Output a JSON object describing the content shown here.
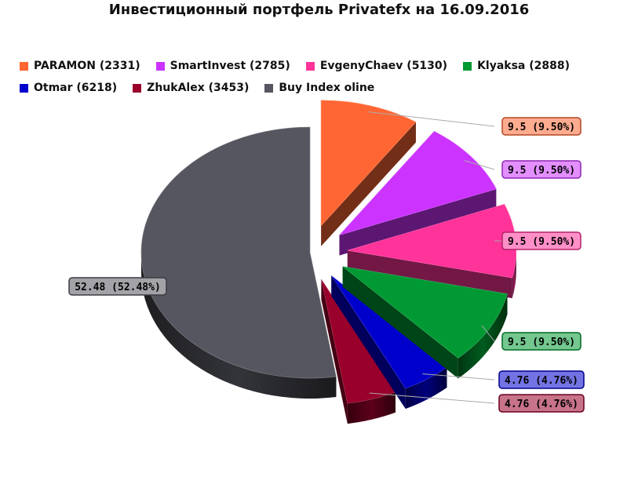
{
  "chart_data": {
    "type": "pie",
    "title": "Инвестиционный портфель Privatefx на 16.09.2016",
    "legend_position": "top",
    "slices": [
      {
        "name": "PARAMON (2331)",
        "value": 9.5,
        "label": "9.5 (9.50%)",
        "color": "#ff6633"
      },
      {
        "name": "SmartInvest (2785)",
        "value": 9.5,
        "label": "9.5 (9.50%)",
        "color": "#cc33ff"
      },
      {
        "name": "EvgenyChaev (5130)",
        "value": 9.5,
        "label": "9.5 (9.50%)",
        "color": "#ff3399"
      },
      {
        "name": "Klyaksa (2888)",
        "value": 9.5,
        "label": "9.5 (9.50%)",
        "color": "#009933"
      },
      {
        "name": "Otmar (6218)",
        "value": 4.76,
        "label": "4.76 (4.76%)",
        "color": "#0000cc"
      },
      {
        "name": "ZhukAlex (3453)",
        "value": 4.76,
        "label": "4.76 (4.76%)",
        "color": "#99002b"
      },
      {
        "name": "Buy Index oline",
        "value": 52.48,
        "label": "52.48 (52.48%)",
        "color": "#55565f"
      }
    ]
  }
}
